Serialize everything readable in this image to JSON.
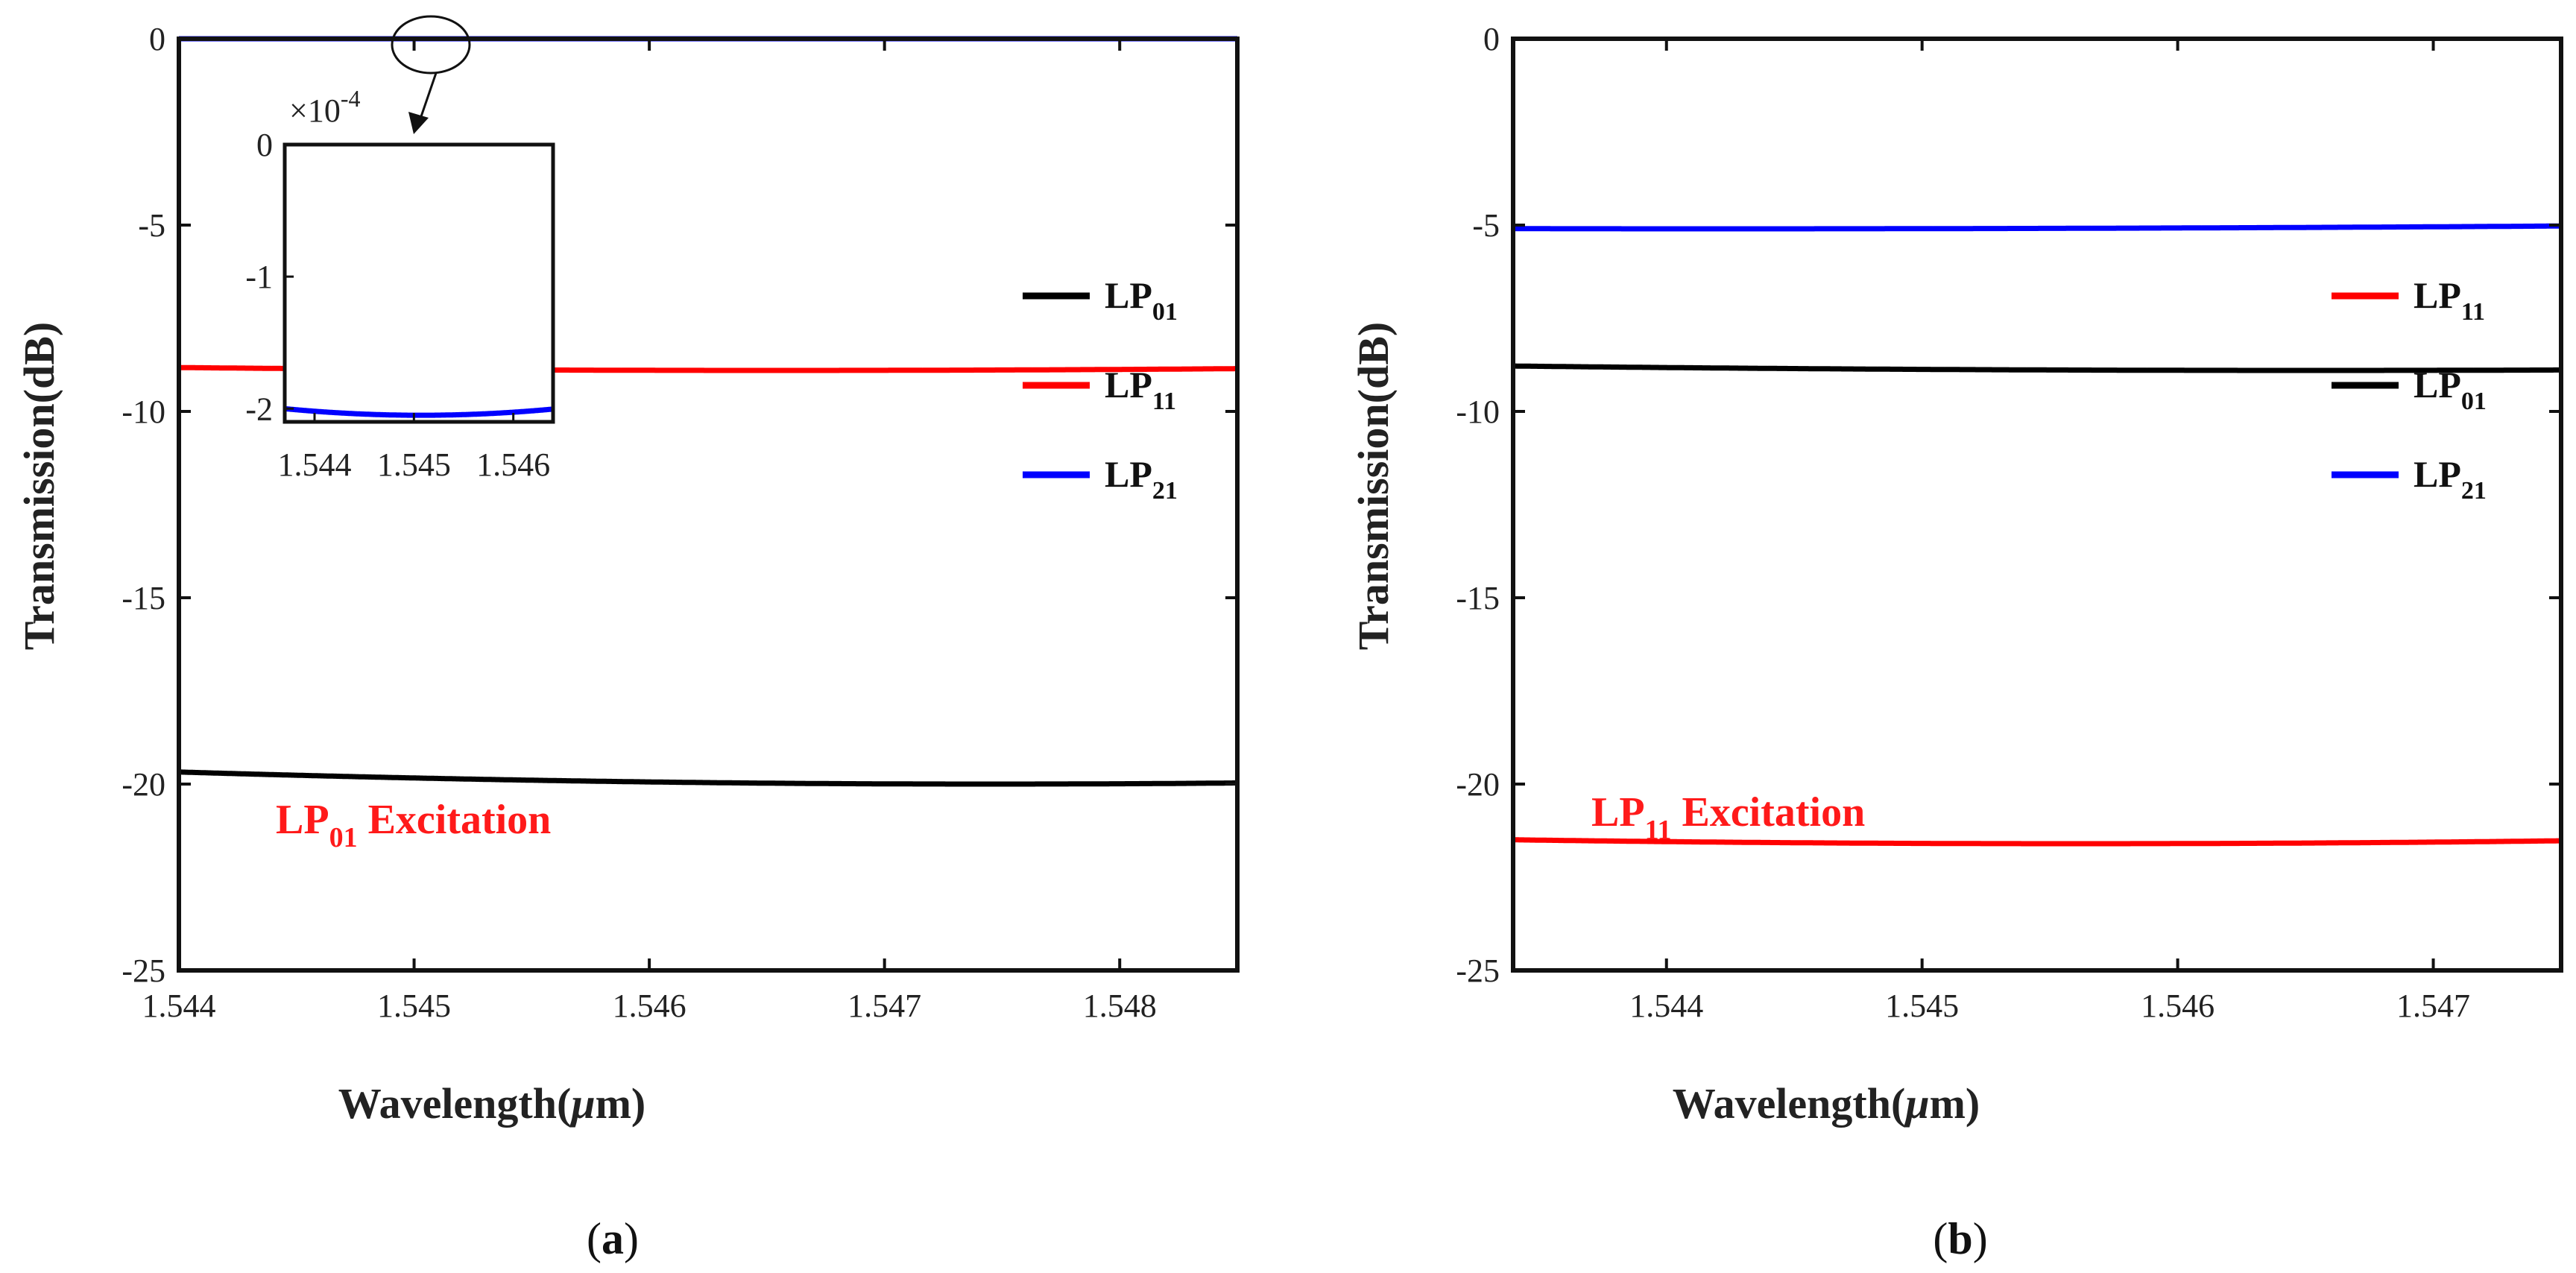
{
  "chart_data": [
    {
      "type": "line",
      "panel_label": "(a)",
      "panel_letter": "a",
      "xlabel": "Wavelength(μm)",
      "xlabel_prefix": "Wavelength(",
      "xlabel_mu": "μ",
      "xlabel_suffix": "m)",
      "ylabel": "Transmission(dB)",
      "xlim": [
        1.544,
        1.5485
      ],
      "ylim": [
        -25,
        0
      ],
      "xticks": [
        1.544,
        1.545,
        1.546,
        1.547,
        1.548
      ],
      "xtick_labels": [
        "1.544",
        "1.545",
        "1.546",
        "1.547",
        "1.548"
      ],
      "yticks": [
        0,
        -5,
        -10,
        -15,
        -20,
        -25
      ],
      "ytick_labels": [
        "0",
        "-5",
        "-10",
        "-15",
        "-20",
        "-25"
      ],
      "annotation": {
        "prefix": "LP",
        "sub": "01",
        "suffix": " Excitation"
      },
      "legend": [
        {
          "base": "LP",
          "sub": "01",
          "color": "#000000"
        },
        {
          "base": "LP",
          "sub": "11",
          "color": "#ff0000"
        },
        {
          "base": "LP",
          "sub": "21",
          "color": "#0000ff"
        }
      ],
      "series": [
        {
          "name": "LP01",
          "color": "#000000",
          "dip_center": 1.54745,
          "dip_depth_db": -20.0,
          "dip_width": 0.03
        },
        {
          "name": "LP11",
          "color": "#ff0000",
          "dip_center": 1.54652,
          "dip_depth_db": -8.9,
          "dip_width": 0.03
        },
        {
          "name": "LP21",
          "color": "#0000ff",
          "dip_center": 1.54507,
          "dip_depth_db": -0.0002,
          "dip_width": 0.02
        }
      ],
      "inset": {
        "multiplier": "×10",
        "multiplier_exp": "-4",
        "xlim": [
          1.5437,
          1.5464
        ],
        "ylim": [
          -2.1,
          0
        ],
        "xticks": [
          1.544,
          1.545,
          1.546
        ],
        "xtick_labels": [
          "1.544",
          "1.545",
          "1.546"
        ],
        "yticks": [
          0,
          -1,
          -2
        ],
        "ytick_labels": [
          "0",
          "-1",
          "-2"
        ],
        "series": {
          "name": "LP21",
          "color": "#0000ff",
          "dip_center": 1.54507,
          "dip_depth": -2.05,
          "dip_width": 0.025
        }
      }
    },
    {
      "type": "line",
      "panel_label": "(b)",
      "panel_letter": "b",
      "xlabel": "Wavelength(μm)",
      "xlabel_prefix": "Wavelength(",
      "xlabel_mu": "μ",
      "xlabel_suffix": "m)",
      "ylabel": "Transmission(dB)",
      "xlim": [
        1.5434,
        1.5475
      ],
      "ylim": [
        -25,
        0
      ],
      "xticks": [
        1.544,
        1.545,
        1.546,
        1.547
      ],
      "xtick_labels": [
        "1.544",
        "1.545",
        "1.546",
        "1.547"
      ],
      "yticks": [
        0,
        -5,
        -10,
        -15,
        -20,
        -25
      ],
      "ytick_labels": [
        "0",
        "-5",
        "-10",
        "-15",
        "-20",
        "-25"
      ],
      "annotation": {
        "prefix": "LP",
        "sub": "11",
        "suffix": " Excitation"
      },
      "legend": [
        {
          "base": "LP",
          "sub": "11",
          "color": "#ff0000"
        },
        {
          "base": "LP",
          "sub": "01",
          "color": "#000000"
        },
        {
          "base": "LP",
          "sub": "21",
          "color": "#0000ff"
        }
      ],
      "series": [
        {
          "name": "LP11",
          "color": "#ff0000",
          "dip_center": 1.5456,
          "dip_depth_db": -21.6,
          "dip_width": 0.035
        },
        {
          "name": "LP01",
          "color": "#000000",
          "dip_center": 1.54652,
          "dip_depth_db": -8.9,
          "dip_width": 0.03
        },
        {
          "name": "LP21",
          "color": "#0000ff",
          "dip_center": 1.5442,
          "dip_depth_db": -5.1,
          "dip_width": 0.03
        }
      ]
    }
  ]
}
